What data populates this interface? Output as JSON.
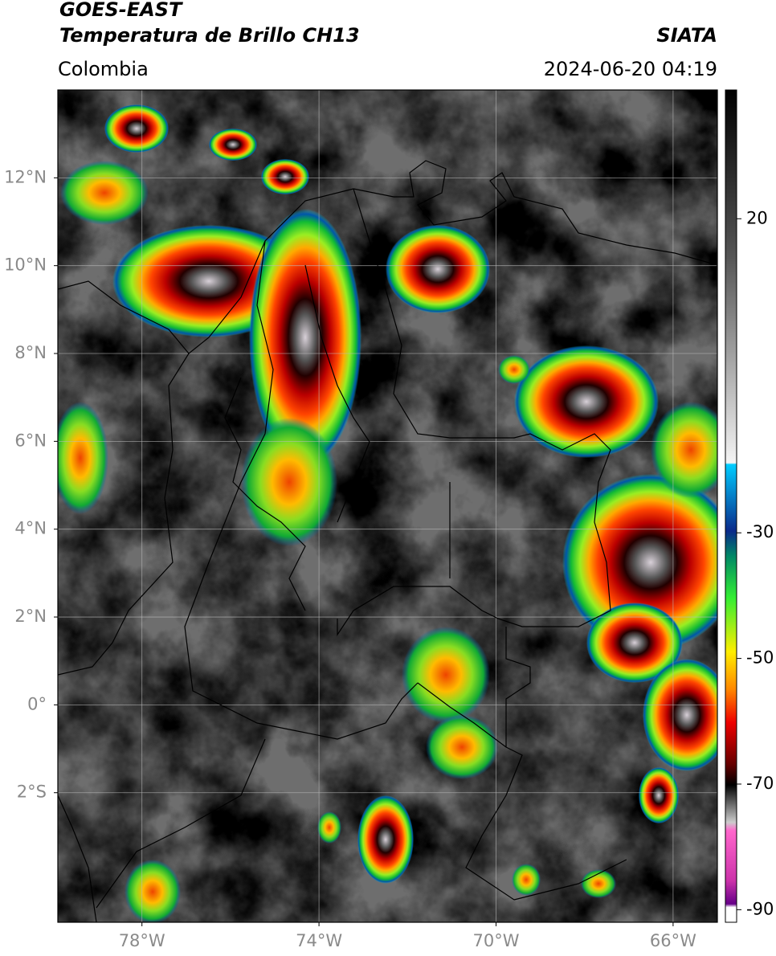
{
  "header": {
    "title": "GOES-EAST",
    "subtitle": "Temperatura de Brillo CH13",
    "region": "Colombia",
    "source": "SIATA",
    "timestamp": "2024-06-20 04:19"
  },
  "map": {
    "xlim": [
      -79.9,
      -65.0
    ],
    "ylim": [
      -4.95,
      14.0
    ],
    "xticks": [
      {
        "value": -78,
        "label": "78°W"
      },
      {
        "value": -74,
        "label": "74°W"
      },
      {
        "value": -70,
        "label": "70°W"
      },
      {
        "value": -66,
        "label": "66°W"
      }
    ],
    "yticks": [
      {
        "value": 12,
        "label": "12°N"
      },
      {
        "value": 10,
        "label": "10°N"
      },
      {
        "value": 8,
        "label": "8°N"
      },
      {
        "value": 6,
        "label": "6°N"
      },
      {
        "value": 4,
        "label": "4°N"
      },
      {
        "value": 2,
        "label": "2°N"
      },
      {
        "value": 0,
        "label": "0°"
      },
      {
        "value": -2,
        "label": "2°S"
      }
    ]
  },
  "colorbar": {
    "lim": [
      -92,
      40.5
    ],
    "ticks": [
      20,
      -30,
      -50,
      -70,
      -90
    ]
  }
}
